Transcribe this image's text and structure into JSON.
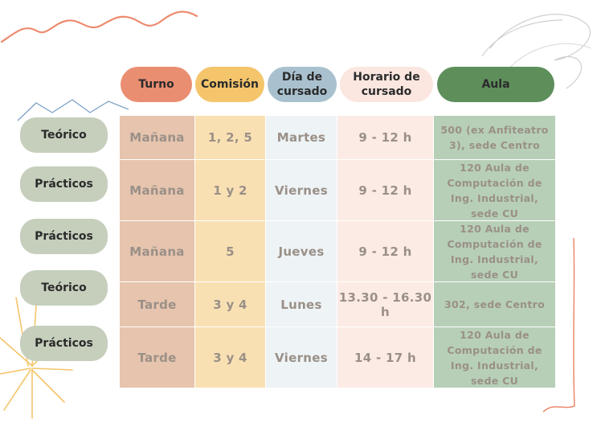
{
  "header": {
    "turno": "Turno",
    "comision": "Comisión",
    "dia": "Día de cursado",
    "horario": "Horario de cursado",
    "aula": "Aula"
  },
  "rows": [
    {
      "tipo": "Teórico",
      "turno": "Mañana",
      "comision": "1, 2, 5",
      "dia": "Martes",
      "horario": "9 - 12 h",
      "aula": "500 (ex Anfiteatro 3), sede Centro"
    },
    {
      "tipo": "Prácticos",
      "turno": "Mañana",
      "comision": "1 y 2",
      "dia": "Viernes",
      "horario": "9 - 12 h",
      "aula": "120 Aula de Computación de Ing. Industrial, sede CU"
    },
    {
      "tipo": "Prácticos",
      "turno": "Mañana",
      "comision": "5",
      "dia": "Jueves",
      "horario": "9 - 12 h",
      "aula": "120 Aula de Computación de Ing. Industrial, sede CU"
    },
    {
      "tipo": "Teórico",
      "turno": "Tarde",
      "comision": "3 y 4",
      "dia": "Lunes",
      "horario": "13.30 - 16.30 h",
      "aula": "302, sede Centro"
    },
    {
      "tipo": "Prácticos",
      "turno": "Tarde",
      "comision": "3 y 4",
      "dia": "Viernes",
      "horario": "14 - 17 h",
      "aula": "120 Aula de Computación de Ing. Industrial, sede CU"
    }
  ],
  "colors": {
    "turno_header": "#ea8e72",
    "comision_header": "#f4c56b",
    "dia_header": "#a9c1cf",
    "horario_header": "#fbe6e0",
    "aula_header": "#5e8f5b",
    "row_pill": "#c5cfbc"
  }
}
